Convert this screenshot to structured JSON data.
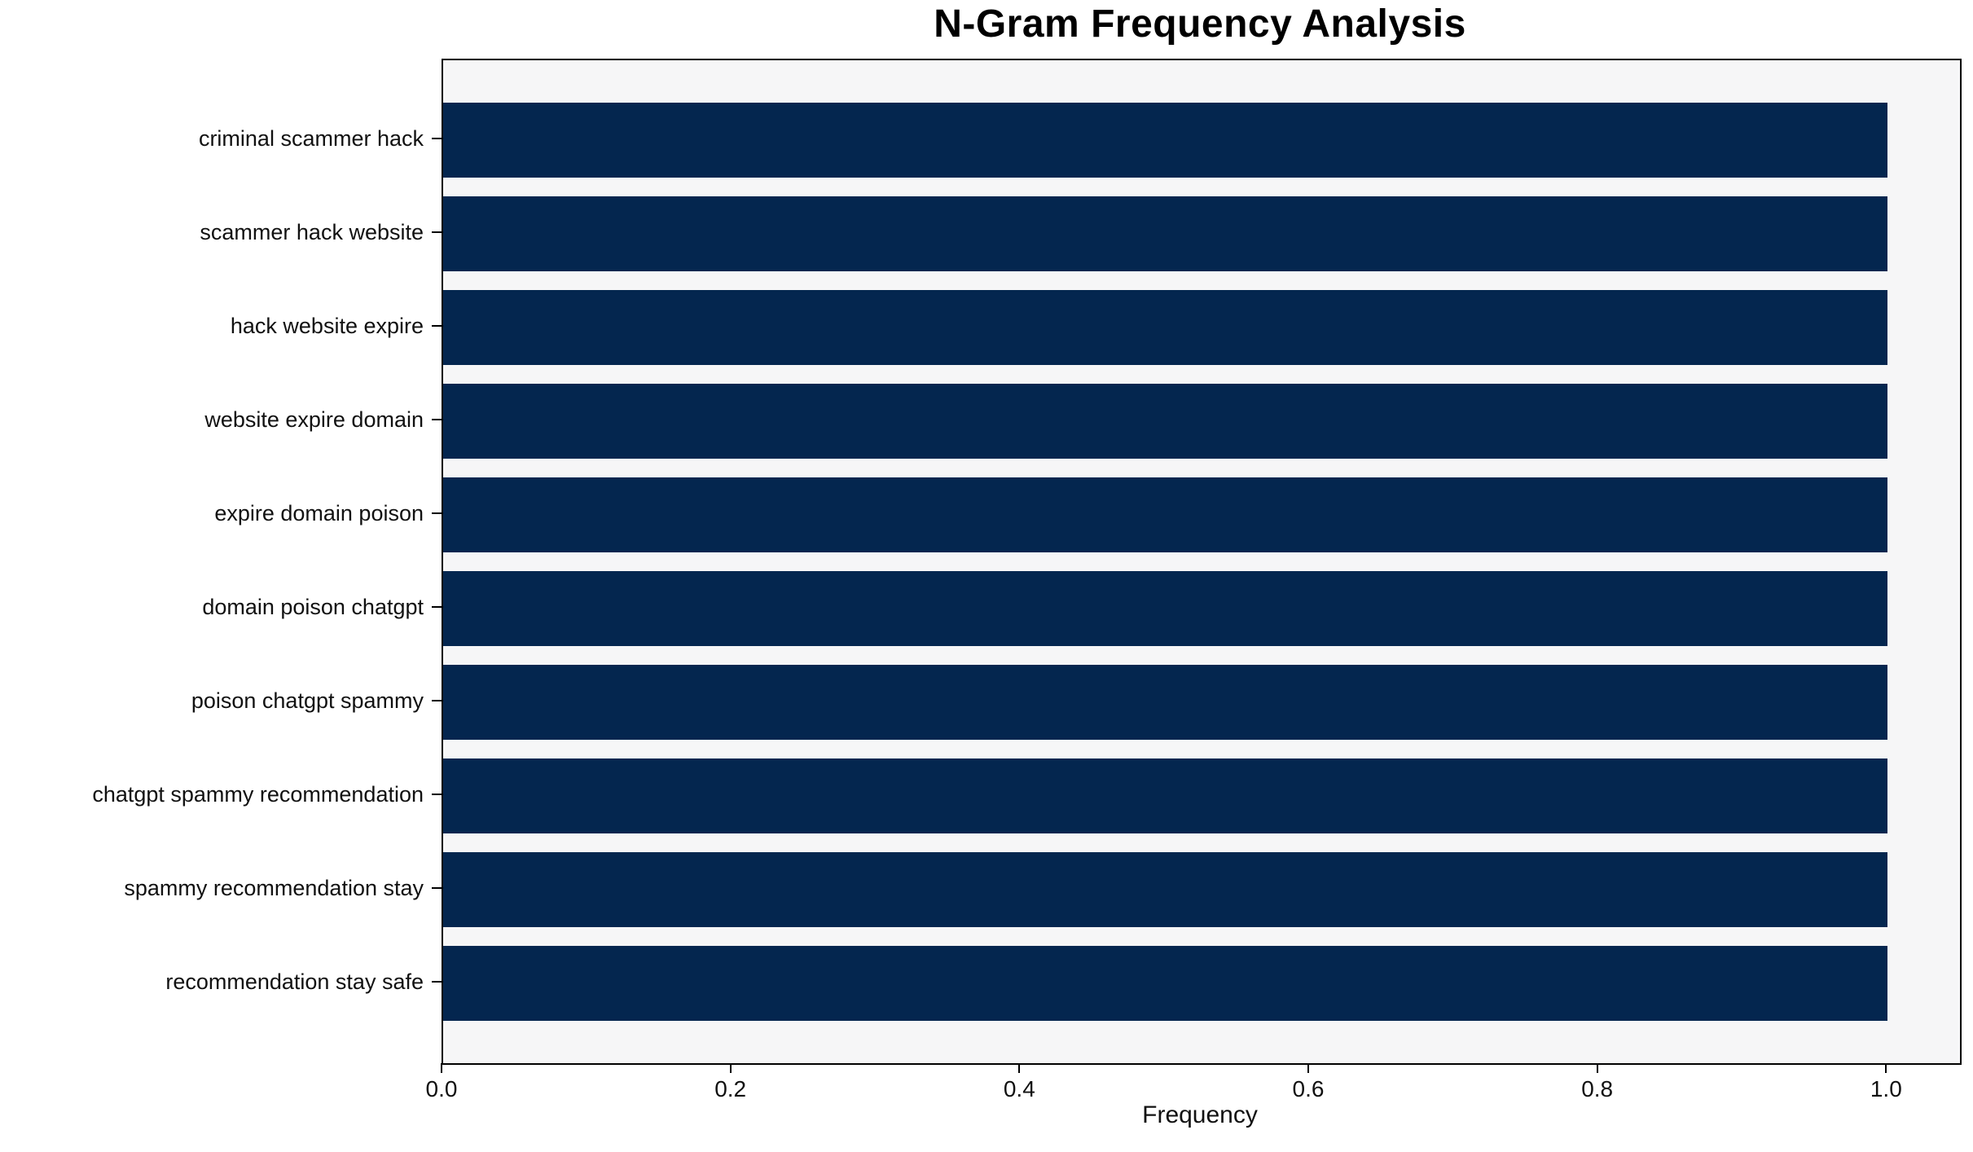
{
  "figure": {
    "background": "#ffffff"
  },
  "chart_data": {
    "type": "bar",
    "orientation": "horizontal",
    "title": "N-Gram Frequency Analysis",
    "xlabel": "Frequency",
    "ylabel": "",
    "categories": [
      "criminal scammer hack",
      "scammer hack website",
      "hack website expire",
      "website expire domain",
      "expire domain poison",
      "domain poison chatgpt",
      "poison chatgpt spammy",
      "chatgpt spammy recommendation",
      "spammy recommendation stay",
      "recommendation stay safe"
    ],
    "values": [
      1.0,
      1.0,
      1.0,
      1.0,
      1.0,
      1.0,
      1.0,
      1.0,
      1.0,
      1.0
    ],
    "xticks": [
      0.0,
      0.2,
      0.4,
      0.6,
      0.8,
      1.0
    ],
    "xtick_labels": [
      "0.0",
      "0.2",
      "0.4",
      "0.6",
      "0.8",
      "1.0"
    ],
    "xlim": [
      0,
      1.05
    ],
    "bar_height_fraction": 0.8,
    "grid": false,
    "legend": null,
    "colors": {
      "bar": "#04264f",
      "plot_background": "#f6f6f7",
      "spine": "#000000",
      "text": "#111111",
      "title": "#000000"
    }
  }
}
